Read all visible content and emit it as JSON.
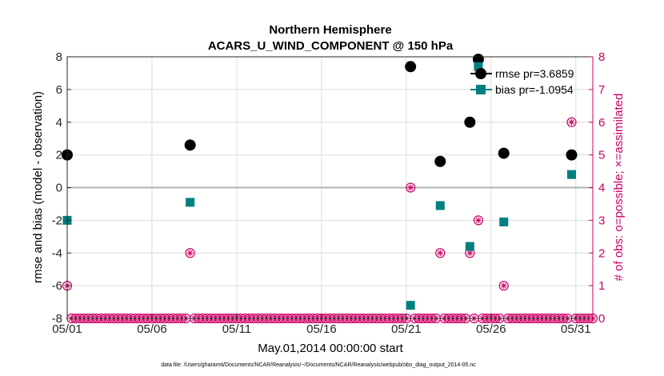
{
  "chart_data": {
    "type": "scatter",
    "title": "Northern Hemisphere",
    "subtitle": "ACARS_U_WIND_COMPONENT @ 150 hPa",
    "xlabel": "May.01,2014 00:00:00 start",
    "ylabel_left": "rmse and bias (model - observation)",
    "ylabel_right": "# of obs: o=possible; ×=assimilated",
    "x_ticks": [
      {
        "day": 1,
        "label": "05/01"
      },
      {
        "day": 6,
        "label": "05/06"
      },
      {
        "day": 11,
        "label": "05/11"
      },
      {
        "day": 16,
        "label": "05/16"
      },
      {
        "day": 21,
        "label": "05/21"
      },
      {
        "day": 26,
        "label": "05/26"
      },
      {
        "day": 31,
        "label": "05/31"
      }
    ],
    "xlim_days": [
      1,
      32
    ],
    "ylim_left": [
      -8,
      8
    ],
    "yticks_left": [
      "-8",
      "-6",
      "-4",
      "-2",
      "0",
      "2",
      "4",
      "6",
      "8"
    ],
    "ylim_right": [
      0,
      8
    ],
    "yticks_right": [
      "0",
      "1",
      "2",
      "3",
      "4",
      "5",
      "6",
      "7",
      "8"
    ],
    "grid": true,
    "legend_position": "top-right",
    "series": [
      {
        "name": "rmse pr=3.6859",
        "color": "#000000",
        "marker": "circle",
        "points": [
          {
            "day": 1.0,
            "value": 2.0
          },
          {
            "day": 8.25,
            "value": 2.6
          },
          {
            "day": 21.25,
            "value": 7.4
          },
          {
            "day": 23.0,
            "value": 1.6
          },
          {
            "day": 24.75,
            "value": 4.0
          },
          {
            "day": 25.25,
            "value": 7.85
          },
          {
            "day": 26.75,
            "value": 2.1
          },
          {
            "day": 30.75,
            "value": 2.0
          }
        ]
      },
      {
        "name": "bias pr=-1.0954",
        "color": "#008080",
        "marker": "square",
        "points": [
          {
            "day": 1.0,
            "value": -2.0
          },
          {
            "day": 8.25,
            "value": -0.9
          },
          {
            "day": 21.25,
            "value": -7.2
          },
          {
            "day": 23.0,
            "value": -1.1
          },
          {
            "day": 24.75,
            "value": -3.6
          },
          {
            "day": 25.25,
            "value": 7.4
          },
          {
            "day": 26.75,
            "value": -2.1
          },
          {
            "day": 30.75,
            "value": 0.8
          }
        ]
      },
      {
        "name": "obs count",
        "color": "#cc0066",
        "marker": "circle-asterisk",
        "axis": "right",
        "nonzero_points": [
          {
            "day": 1.0,
            "count": 1
          },
          {
            "day": 8.25,
            "count": 2
          },
          {
            "day": 21.25,
            "count": 4
          },
          {
            "day": 23.0,
            "count": 2
          },
          {
            "day": 24.75,
            "count": 2
          },
          {
            "day": 25.25,
            "count": 3
          },
          {
            "day": 26.75,
            "count": 1
          },
          {
            "day": 30.75,
            "count": 6
          }
        ],
        "zero_interval_days": 0.25
      }
    ],
    "reference_line": 0,
    "footnote": "data file: /Users/gharamti/Documents/NCAR/Reanalysis/~/Documents/NCAR/Reanalysis/webpub/obs_diag_output_2014-05.nc"
  }
}
